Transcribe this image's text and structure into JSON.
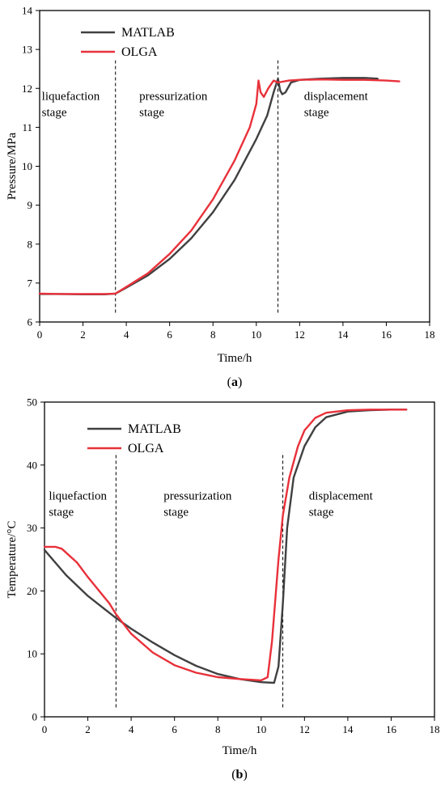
{
  "chart_data": [
    {
      "type": "line",
      "panel_label": {
        "open": "(",
        "letter": "a",
        "close": ")"
      },
      "xlabel": "Time/h",
      "ylabel": "Pressure/MPa",
      "xlim": [
        0,
        18
      ],
      "ylim": [
        6,
        14
      ],
      "xticks": [
        0,
        2,
        4,
        6,
        8,
        10,
        12,
        14,
        16,
        18
      ],
      "yticks": [
        6,
        7,
        8,
        9,
        10,
        11,
        12,
        13,
        14
      ],
      "grid": false,
      "legend": "top-left",
      "stage_dividers": [
        3.5,
        11.0
      ],
      "stage_labels": [
        {
          "lines": [
            "liquefaction",
            "stage"
          ],
          "x": 0.1,
          "y": 11.7
        },
        {
          "lines": [
            "pressurization",
            "stage"
          ],
          "x": 4.6,
          "y": 11.7
        },
        {
          "lines": [
            "displacement",
            "stage"
          ],
          "x": 12.2,
          "y": 11.7
        }
      ],
      "series": [
        {
          "name": "MATLAB",
          "color": "#404040",
          "points": [
            [
              0,
              6.72
            ],
            [
              1,
              6.72
            ],
            [
              2,
              6.71
            ],
            [
              3,
              6.71
            ],
            [
              3.5,
              6.73
            ],
            [
              4,
              6.88
            ],
            [
              5,
              7.2
            ],
            [
              6,
              7.62
            ],
            [
              7,
              8.15
            ],
            [
              8,
              8.82
            ],
            [
              9,
              9.65
            ],
            [
              10,
              10.7
            ],
            [
              10.5,
              11.3
            ],
            [
              10.8,
              11.9
            ],
            [
              11.0,
              12.25
            ],
            [
              11.1,
              11.95
            ],
            [
              11.2,
              11.85
            ],
            [
              11.35,
              11.9
            ],
            [
              11.6,
              12.15
            ],
            [
              12,
              12.22
            ],
            [
              13,
              12.25
            ],
            [
              14,
              12.27
            ],
            [
              15,
              12.27
            ],
            [
              15.6,
              12.25
            ]
          ]
        },
        {
          "name": "OLGA",
          "color": "#e8313a",
          "points": [
            [
              0,
              6.73
            ],
            [
              1,
              6.72
            ],
            [
              2,
              6.72
            ],
            [
              3,
              6.72
            ],
            [
              3.5,
              6.73
            ],
            [
              4,
              6.9
            ],
            [
              5,
              7.25
            ],
            [
              6,
              7.75
            ],
            [
              7,
              8.35
            ],
            [
              8,
              9.15
            ],
            [
              9,
              10.15
            ],
            [
              9.7,
              11.0
            ],
            [
              10.0,
              11.6
            ],
            [
              10.1,
              12.2
            ],
            [
              10.2,
              11.9
            ],
            [
              10.35,
              11.78
            ],
            [
              10.55,
              12.0
            ],
            [
              10.8,
              12.2
            ],
            [
              11.0,
              12.15
            ],
            [
              11.5,
              12.2
            ],
            [
              12,
              12.22
            ],
            [
              13,
              12.23
            ],
            [
              14,
              12.22
            ],
            [
              15,
              12.22
            ],
            [
              16,
              12.2
            ],
            [
              16.6,
              12.18
            ]
          ]
        }
      ]
    },
    {
      "type": "line",
      "panel_label": {
        "open": "(",
        "letter": "b",
        "close": ")"
      },
      "xlabel": "Time/h",
      "ylabel": "Temperature/°C",
      "xlim": [
        0,
        18
      ],
      "ylim": [
        0,
        50
      ],
      "xticks": [
        0,
        2,
        4,
        6,
        8,
        10,
        12,
        14,
        16,
        18
      ],
      "yticks": [
        0,
        10,
        20,
        30,
        40,
        50
      ],
      "grid": false,
      "legend": "top-left",
      "stage_dividers": [
        3.3,
        11.0
      ],
      "stage_labels": [
        {
          "lines": [
            "liquefaction",
            "stage"
          ],
          "x": 0.2,
          "y": 34.5
        },
        {
          "lines": [
            "pressurization",
            "stage"
          ],
          "x": 5.5,
          "y": 34.5
        },
        {
          "lines": [
            "displacement",
            "stage"
          ],
          "x": 12.2,
          "y": 34.5
        }
      ],
      "series": [
        {
          "name": "MATLAB",
          "color": "#404040",
          "points": [
            [
              0,
              26.5
            ],
            [
              1,
              22.5
            ],
            [
              2,
              19.2
            ],
            [
              3,
              16.5
            ],
            [
              3.3,
              15.7
            ],
            [
              4,
              14.0
            ],
            [
              5,
              11.8
            ],
            [
              6,
              9.8
            ],
            [
              7,
              8.1
            ],
            [
              8,
              6.8
            ],
            [
              9,
              6.0
            ],
            [
              10,
              5.5
            ],
            [
              10.6,
              5.4
            ],
            [
              10.8,
              8
            ],
            [
              11.0,
              18
            ],
            [
              11.2,
              30
            ],
            [
              11.5,
              38
            ],
            [
              12,
              43
            ],
            [
              12.5,
              46
            ],
            [
              13,
              47.6
            ],
            [
              14,
              48.5
            ],
            [
              15,
              48.7
            ],
            [
              16,
              48.8
            ],
            [
              16.7,
              48.8
            ]
          ]
        },
        {
          "name": "OLGA",
          "color": "#e8313a",
          "points": [
            [
              0,
              27.0
            ],
            [
              0.5,
              27.0
            ],
            [
              0.8,
              26.7
            ],
            [
              1.5,
              24.5
            ],
            [
              2,
              22.2
            ],
            [
              3,
              18.0
            ],
            [
              3.3,
              16.3
            ],
            [
              4,
              13.2
            ],
            [
              5,
              10.2
            ],
            [
              6,
              8.2
            ],
            [
              7,
              7.0
            ],
            [
              8,
              6.3
            ],
            [
              9,
              6.0
            ],
            [
              10,
              5.8
            ],
            [
              10.3,
              6.3
            ],
            [
              10.5,
              12
            ],
            [
              10.8,
              25
            ],
            [
              11.0,
              32
            ],
            [
              11.3,
              38
            ],
            [
              11.7,
              43
            ],
            [
              12,
              45.5
            ],
            [
              12.5,
              47.5
            ],
            [
              13,
              48.3
            ],
            [
              14,
              48.7
            ],
            [
              15,
              48.8
            ],
            [
              16,
              48.8
            ],
            [
              16.7,
              48.8
            ]
          ]
        }
      ]
    }
  ]
}
